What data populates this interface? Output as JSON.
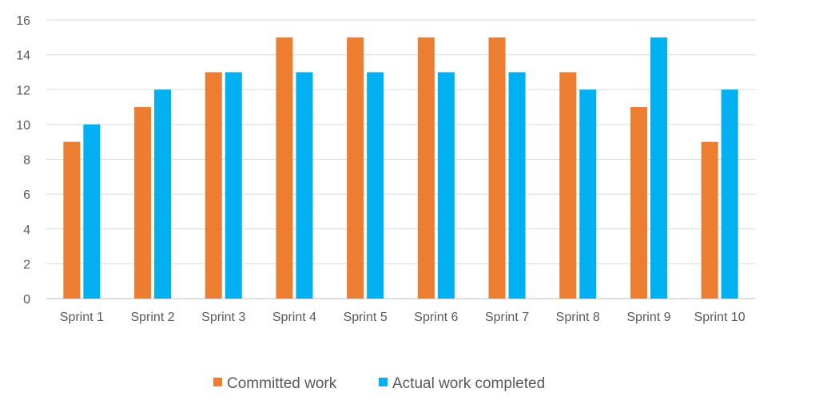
{
  "chart_data": {
    "type": "bar",
    "title": "",
    "xlabel": "",
    "ylabel": "",
    "categories": [
      "Sprint 1",
      "Sprint 2",
      "Sprint 3",
      "Sprint 4",
      "Sprint 5",
      "Sprint 6",
      "Sprint 7",
      "Sprint 8",
      "Sprint 9",
      "Sprint 10"
    ],
    "series": [
      {
        "name": "Committed work",
        "color": "#ED7D31",
        "values": [
          9,
          11,
          13,
          15,
          15,
          15,
          15,
          13,
          11,
          9
        ]
      },
      {
        "name": "Actual work completed",
        "color": "#00B0F0",
        "values": [
          10,
          12,
          13,
          13,
          13,
          13,
          13,
          12,
          15,
          12
        ]
      }
    ],
    "ylim": [
      0,
      16
    ],
    "yticks": [
      0,
      2,
      4,
      6,
      8,
      10,
      12,
      14,
      16
    ],
    "grid": true,
    "legend_position": "bottom"
  }
}
